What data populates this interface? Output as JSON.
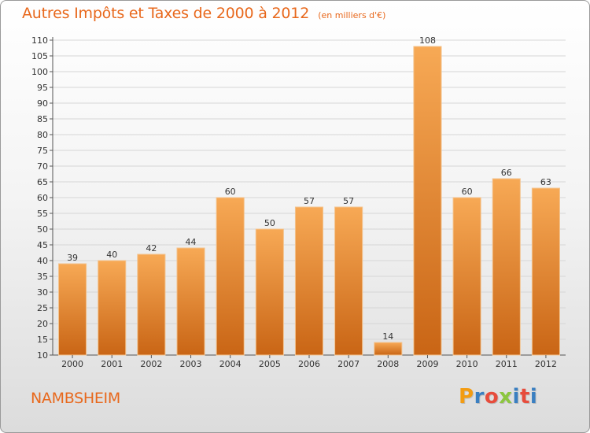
{
  "header": {
    "title": "Autres Impôts et Taxes de 2000 à 2012",
    "subtitle": "(en milliers d'€)"
  },
  "footer": {
    "commune": "NAMBSHEIM",
    "brand": "Proxiti",
    "brand_colors": [
      "#f39c12",
      "#3a7fc1",
      "#e74c3c",
      "#8cc63f",
      "#3a7fc1",
      "#e74c3c",
      "#3a7fc1"
    ]
  },
  "chart_data": {
    "type": "bar",
    "title": "Autres Impôts et Taxes de 2000 à 2012",
    "subtitle": "(en milliers d'€)",
    "categories": [
      "2000",
      "2001",
      "2002",
      "2003",
      "2004",
      "2005",
      "2006",
      "2007",
      "2008",
      "2009",
      "2010",
      "2011",
      "2012"
    ],
    "values": [
      39,
      40,
      42,
      44,
      60,
      50,
      57,
      57,
      14,
      108,
      60,
      66,
      63
    ],
    "ylim": [
      10,
      110
    ],
    "ytick_step": 5,
    "grid": true,
    "legend": false,
    "data_labels": true,
    "bar_color_top": "#f7a955",
    "bar_color_bottom": "#c96515",
    "grid_color": "#d6d6d6"
  }
}
